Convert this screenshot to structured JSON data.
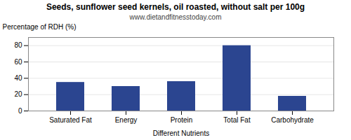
{
  "chart_data": {
    "type": "bar",
    "title": "Seeds, sunflower seed kernels, oil roasted, without salt per 100g",
    "subtitle": "www.dietandfitnesstoday.com",
    "categories": [
      "Saturated Fat",
      "Energy",
      "Protein",
      "Total Fat",
      "Carbohydrate"
    ],
    "values": [
      35,
      30,
      36,
      80,
      18
    ],
    "color": "#2b4590",
    "xlabel": "Different Nutrients",
    "ylabel": "Percentage of RDH (%)",
    "ylim": [
      0,
      90
    ],
    "yticks": [
      0,
      20,
      40,
      60,
      80
    ],
    "grid": true
  }
}
